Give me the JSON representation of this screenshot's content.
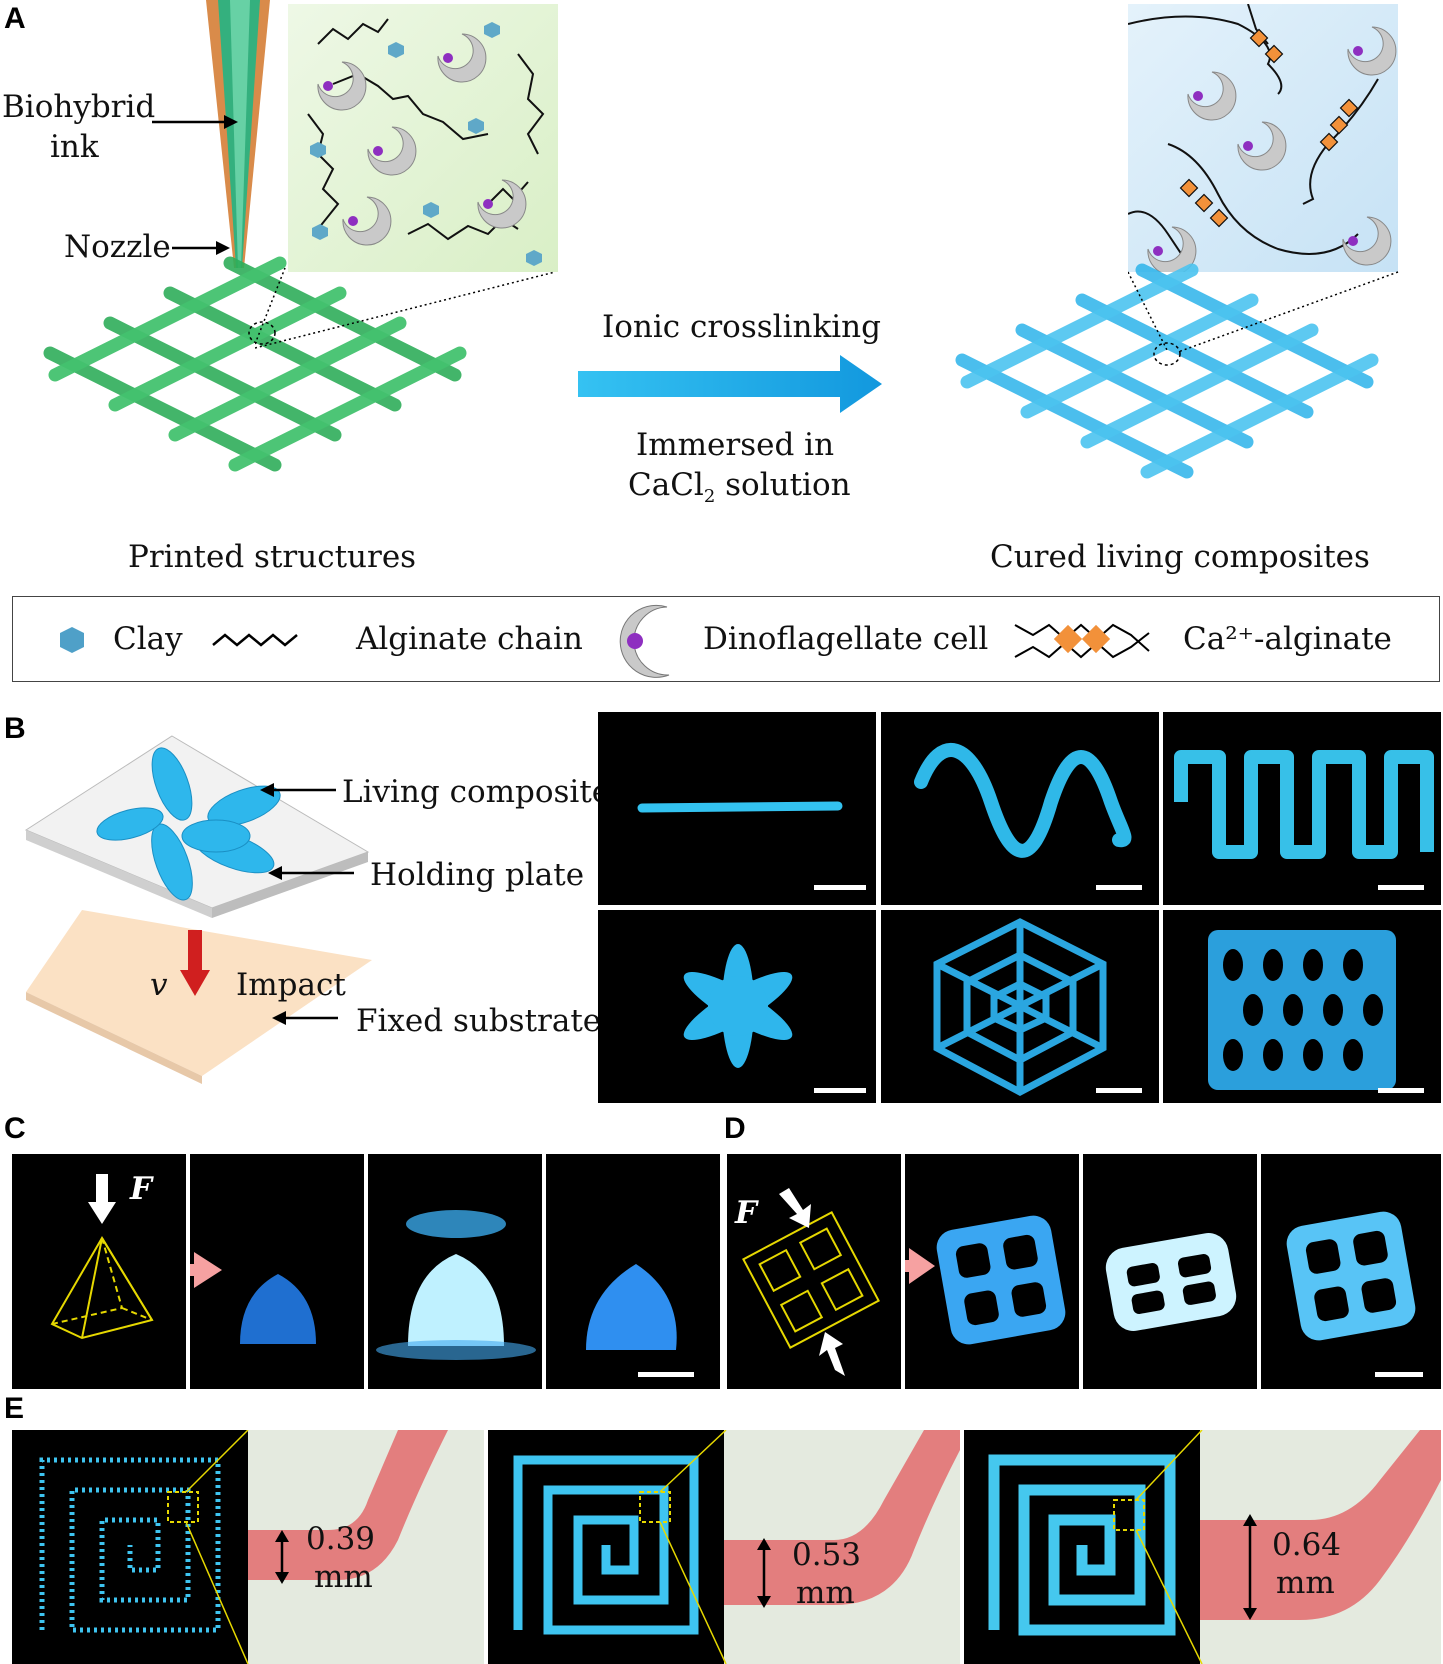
{
  "panels": {
    "A": {
      "letter": "A",
      "ink_label_line1": "Biohybrid",
      "ink_label_line2": "ink",
      "nozzle_label": "Nozzle",
      "arrow_top": "Ionic crosslinking",
      "arrow_bottom_line1": "Immersed in",
      "arrow_bottom_line2_main": "CaCl",
      "arrow_bottom_line2_sub": "2",
      "arrow_bottom_line2_rest": " solution",
      "left_caption": "Printed structures",
      "right_caption": "Cured living composites",
      "colors": {
        "printed": "#2fae5a",
        "cured": "#2cb3ea",
        "arrow": "#1aa7e6",
        "zoom_green": "#e6f4d8",
        "zoom_blue": "#cfe8f8"
      }
    },
    "legend": {
      "clay": "Clay",
      "alginate": "Alginate chain",
      "cell": "Dinoflagellate cell",
      "ca_alginate": "Ca²⁺-alginate"
    },
    "B": {
      "letter": "B",
      "living_composite": "Living composite",
      "holding_plate": "Holding plate",
      "velocity": "v",
      "impact": "Impact",
      "fixed_substrate": "Fixed substrate",
      "photos": [
        "line",
        "sine wave",
        "square wave",
        "star",
        "spider web",
        "lattice"
      ]
    },
    "C": {
      "letter": "C",
      "force": "F"
    },
    "D": {
      "letter": "D",
      "force": "F"
    },
    "E": {
      "letter": "E",
      "thickness": [
        {
          "value": "0.39",
          "unit": "mm"
        },
        {
          "value": "0.53",
          "unit": "mm"
        },
        {
          "value": "0.64",
          "unit": "mm"
        }
      ]
    }
  }
}
